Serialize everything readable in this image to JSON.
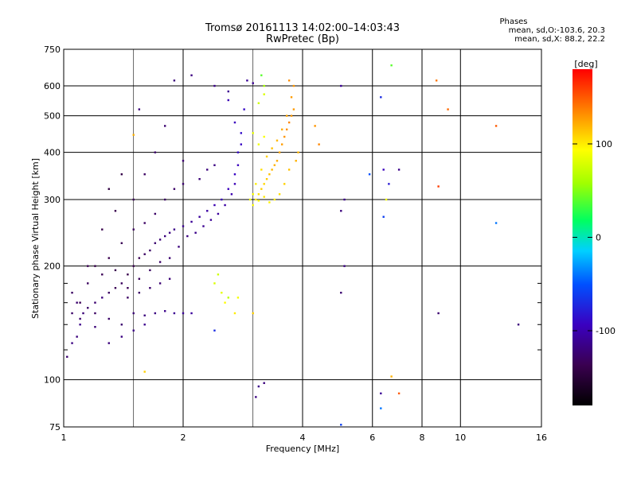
{
  "header": {
    "title_line1": "Tromsø 20161113 14:02:00–14:03:43",
    "title_line2": "RwPretec (Bp)",
    "stats_heading": "Phases",
    "stats_o": "mean, sd,O:-103.6, 20.3",
    "stats_x": "mean, sd,X:  88.2, 22.2"
  },
  "chart_data": {
    "type": "scatter",
    "xlabel": "Frequency [MHz]",
    "ylabel": "Stationary phase Virtual Height [km]",
    "xscale": "log",
    "yscale": "log",
    "xlim": [
      1,
      16
    ],
    "ylim": [
      75,
      750
    ],
    "xticks": [
      1,
      2,
      4,
      6,
      8,
      10,
      16
    ],
    "yticks": [
      75,
      100,
      200,
      300,
      400,
      500,
      600,
      750
    ],
    "grid": true,
    "colorbar": {
      "label": "[deg]",
      "range": [
        -180,
        180
      ],
      "ticks": [
        -100,
        0,
        100
      ]
    },
    "series": [
      {
        "values": [
          [
            1.02,
            115,
            -125
          ],
          [
            1.05,
            125,
            -118
          ],
          [
            1.08,
            130,
            -120
          ],
          [
            1.1,
            140,
            -115
          ],
          [
            1.12,
            150,
            -122
          ],
          [
            1.15,
            155,
            -128
          ],
          [
            1.2,
            160,
            -125
          ],
          [
            1.25,
            165,
            -120
          ],
          [
            1.3,
            170,
            -130
          ],
          [
            1.35,
            175,
            -135
          ],
          [
            1.4,
            180,
            -132
          ],
          [
            1.45,
            190,
            -140
          ],
          [
            1.5,
            200,
            -138
          ],
          [
            1.55,
            210,
            -135
          ],
          [
            1.6,
            215,
            -130
          ],
          [
            1.65,
            220,
            -128
          ],
          [
            1.7,
            230,
            -125
          ],
          [
            1.75,
            235,
            -122
          ],
          [
            1.8,
            240,
            -120
          ],
          [
            1.85,
            245,
            -118
          ],
          [
            1.9,
            250,
            -115
          ],
          [
            2.0,
            255,
            -112
          ],
          [
            2.1,
            262,
            -110
          ],
          [
            2.2,
            270,
            -108
          ],
          [
            2.3,
            280,
            -105
          ],
          [
            2.4,
            290,
            -100
          ],
          [
            2.5,
            300,
            -98
          ],
          [
            2.6,
            320,
            -95
          ],
          [
            2.7,
            350,
            -92
          ],
          [
            2.75,
            400,
            -90
          ],
          [
            2.8,
            450,
            -88
          ],
          [
            2.85,
            520,
            -90
          ],
          [
            1.1,
            160,
            -135
          ],
          [
            1.2,
            150,
            -130
          ],
          [
            1.3,
            145,
            -128
          ],
          [
            1.4,
            140,
            -125
          ],
          [
            1.5,
            150,
            -122
          ],
          [
            1.6,
            148,
            -120
          ],
          [
            1.7,
            150,
            -118
          ],
          [
            1.8,
            152,
            -115
          ],
          [
            1.9,
            150,
            -112
          ],
          [
            2.0,
            150,
            -110
          ],
          [
            2.1,
            150,
            -108
          ],
          [
            1.2,
            200,
            -140
          ],
          [
            1.3,
            210,
            -138
          ],
          [
            1.4,
            230,
            -135
          ],
          [
            1.5,
            250,
            -132
          ],
          [
            1.6,
            260,
            -130
          ],
          [
            1.7,
            275,
            -128
          ],
          [
            1.5,
            300,
            -135
          ],
          [
            1.6,
            350,
            -130
          ],
          [
            1.7,
            400,
            -128
          ],
          [
            1.8,
            470,
            -125
          ],
          [
            1.9,
            620,
            -120
          ],
          [
            2.1,
            640,
            -118
          ],
          [
            2.4,
            600,
            -115
          ],
          [
            2.6,
            580,
            -112
          ],
          [
            2.9,
            620,
            -110
          ],
          [
            3.0,
            610,
            -112
          ],
          [
            1.3,
            320,
            -145
          ],
          [
            1.4,
            350,
            -142
          ],
          [
            1.25,
            250,
            -140
          ],
          [
            1.35,
            280,
            -138
          ],
          [
            1.15,
            200,
            -135
          ],
          [
            1.05,
            170,
            -130
          ],
          [
            1.15,
            180,
            -132
          ],
          [
            1.25,
            190,
            -135
          ],
          [
            1.35,
            195,
            -138
          ],
          [
            1.45,
            175,
            -135
          ],
          [
            1.55,
            185,
            -132
          ],
          [
            1.65,
            195,
            -130
          ],
          [
            1.75,
            205,
            -128
          ],
          [
            1.85,
            210,
            -125
          ],
          [
            1.95,
            225,
            -120
          ],
          [
            2.05,
            240,
            -118
          ],
          [
            2.15,
            245,
            -115
          ],
          [
            2.25,
            255,
            -112
          ],
          [
            2.35,
            265,
            -110
          ],
          [
            2.45,
            275,
            -108
          ],
          [
            2.55,
            290,
            -105
          ],
          [
            2.65,
            310,
            -100
          ],
          [
            2.7,
            330,
            -98
          ],
          [
            2.75,
            370,
            -95
          ],
          [
            2.8,
            420,
            -92
          ],
          [
            2.7,
            480,
            -95
          ],
          [
            2.6,
            550,
            -98
          ],
          [
            1.55,
            520,
            -120
          ],
          [
            2.0,
            380,
            -125
          ],
          [
            1.8,
            300,
            -130
          ],
          [
            1.9,
            320,
            -128
          ],
          [
            2.0,
            330,
            -125
          ],
          [
            2.2,
            340,
            -122
          ],
          [
            2.3,
            360,
            -120
          ],
          [
            2.4,
            370,
            -118
          ],
          [
            1.1,
            145,
            -125
          ],
          [
            1.2,
            138,
            -122
          ],
          [
            1.05,
            150,
            -128
          ],
          [
            1.08,
            160,
            -126
          ],
          [
            1.3,
            125,
            -120
          ],
          [
            1.4,
            130,
            -118
          ],
          [
            1.5,
            135,
            -116
          ],
          [
            1.6,
            140,
            -114
          ],
          [
            1.45,
            165,
            -130
          ],
          [
            1.55,
            170,
            -128
          ],
          [
            1.65,
            175,
            -126
          ],
          [
            1.75,
            180,
            -124
          ],
          [
            1.85,
            185,
            -122
          ]
        ]
      },
      {
        "values": [
          [
            3.0,
            290,
            95
          ],
          [
            3.05,
            300,
            100
          ],
          [
            3.1,
            310,
            105
          ],
          [
            3.15,
            320,
            110
          ],
          [
            3.2,
            330,
            108
          ],
          [
            3.25,
            340,
            112
          ],
          [
            3.3,
            350,
            115
          ],
          [
            3.35,
            360,
            118
          ],
          [
            3.4,
            370,
            120
          ],
          [
            3.45,
            380,
            122
          ],
          [
            3.5,
            400,
            125
          ],
          [
            3.55,
            420,
            128
          ],
          [
            3.6,
            440,
            130
          ],
          [
            3.65,
            460,
            132
          ],
          [
            3.7,
            480,
            135
          ],
          [
            3.75,
            500,
            130
          ],
          [
            3.8,
            520,
            128
          ],
          [
            3.85,
            380,
            120
          ],
          [
            3.9,
            400,
            118
          ],
          [
            3.7,
            360,
            115
          ],
          [
            3.6,
            330,
            110
          ],
          [
            3.5,
            310,
            105
          ],
          [
            3.4,
            300,
            100
          ],
          [
            3.3,
            295,
            98
          ],
          [
            3.2,
            305,
            102
          ],
          [
            3.1,
            298,
            96
          ],
          [
            3.0,
            310,
            92
          ],
          [
            2.95,
            300,
            90
          ],
          [
            3.05,
            330,
            100
          ],
          [
            3.15,
            360,
            105
          ],
          [
            3.25,
            390,
            110
          ],
          [
            3.35,
            410,
            115
          ],
          [
            3.45,
            430,
            118
          ],
          [
            3.55,
            460,
            122
          ],
          [
            3.65,
            500,
            125
          ],
          [
            3.75,
            560,
            128
          ],
          [
            3.8,
            600,
            130
          ],
          [
            3.7,
            620,
            132
          ],
          [
            3.2,
            570,
            80
          ],
          [
            3.1,
            540,
            75
          ],
          [
            3.0,
            450,
            85
          ],
          [
            3.1,
            420,
            88
          ],
          [
            3.2,
            440,
            92
          ],
          [
            4.3,
            470,
            130
          ],
          [
            4.4,
            420,
            135
          ],
          [
            3.2,
            600,
            60
          ],
          [
            3.15,
            640,
            40
          ],
          [
            2.4,
            180,
            80
          ],
          [
            2.5,
            170,
            85
          ],
          [
            2.6,
            165,
            70
          ],
          [
            2.45,
            190,
            75
          ],
          [
            2.55,
            160,
            95
          ],
          [
            2.7,
            150,
            100
          ],
          [
            2.75,
            165,
            90
          ],
          [
            3.0,
            150,
            110
          ]
        ]
      },
      {
        "values": [
          [
            5.0,
            600,
            -110
          ],
          [
            5.1,
            300,
            -115
          ],
          [
            5.0,
            280,
            -120
          ],
          [
            5.1,
            200,
            -118
          ],
          [
            5.0,
            170,
            -125
          ],
          [
            6.3,
            560,
            -70
          ],
          [
            6.4,
            360,
            -95
          ],
          [
            6.6,
            330,
            -80
          ],
          [
            6.4,
            270,
            -60
          ],
          [
            7.0,
            360,
            -115
          ],
          [
            8.7,
            620,
            140
          ],
          [
            9.3,
            520,
            145
          ],
          [
            8.8,
            325,
            160
          ],
          [
            12.3,
            470,
            150
          ],
          [
            12.3,
            260,
            -40
          ],
          [
            14.0,
            140,
            -120
          ],
          [
            8.8,
            150,
            -125
          ],
          [
            5.9,
            350,
            -50
          ],
          [
            6.5,
            300,
            90
          ],
          [
            6.7,
            680,
            40
          ],
          [
            6.7,
            102,
            120
          ],
          [
            6.3,
            92,
            -110
          ],
          [
            7.0,
            92,
            150
          ],
          [
            6.3,
            84,
            -40
          ],
          [
            5.0,
            76,
            -60
          ],
          [
            3.1,
            96,
            -115
          ],
          [
            3.2,
            98,
            -120
          ],
          [
            3.05,
            90,
            -118
          ],
          [
            2.4,
            135,
            -70
          ],
          [
            1.6,
            105,
            110
          ],
          [
            1.5,
            445,
            120
          ]
        ]
      }
    ]
  }
}
